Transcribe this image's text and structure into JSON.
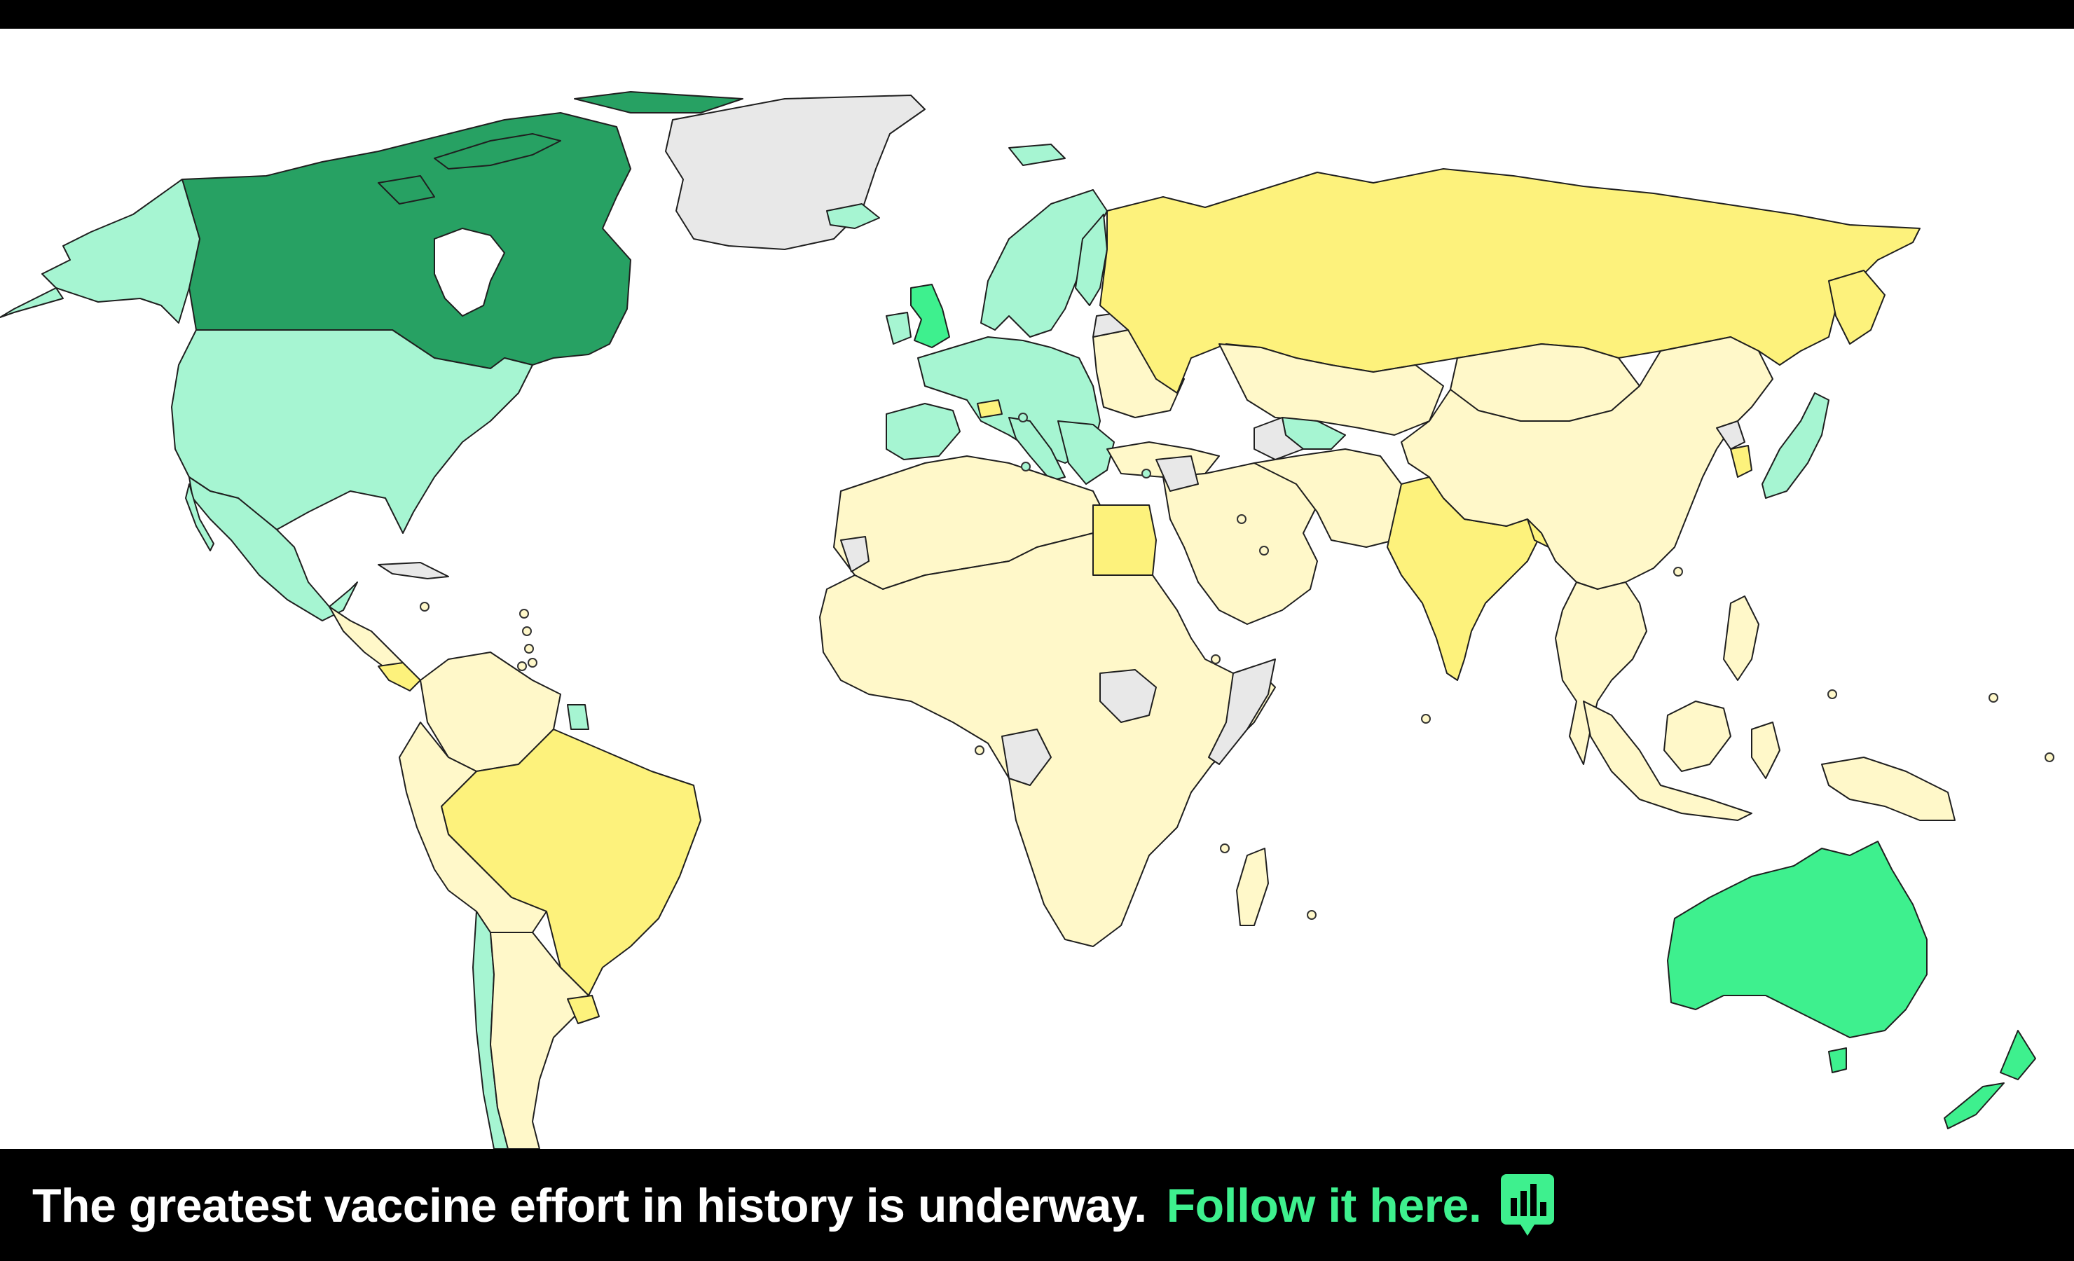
{
  "caption": {
    "text": "The greatest vaccine effort in history is underway.",
    "link_text": "Follow it here."
  },
  "icons": {
    "chart": "bar-chart-speech-bubble-icon"
  },
  "legend_colors": {
    "no_data": "#e8e8e8",
    "very_low": "#fff8c9",
    "low": "#fdf27c",
    "medium": "#a6f5d2",
    "high": "#3ef08e",
    "very_high": "#27a163"
  }
}
